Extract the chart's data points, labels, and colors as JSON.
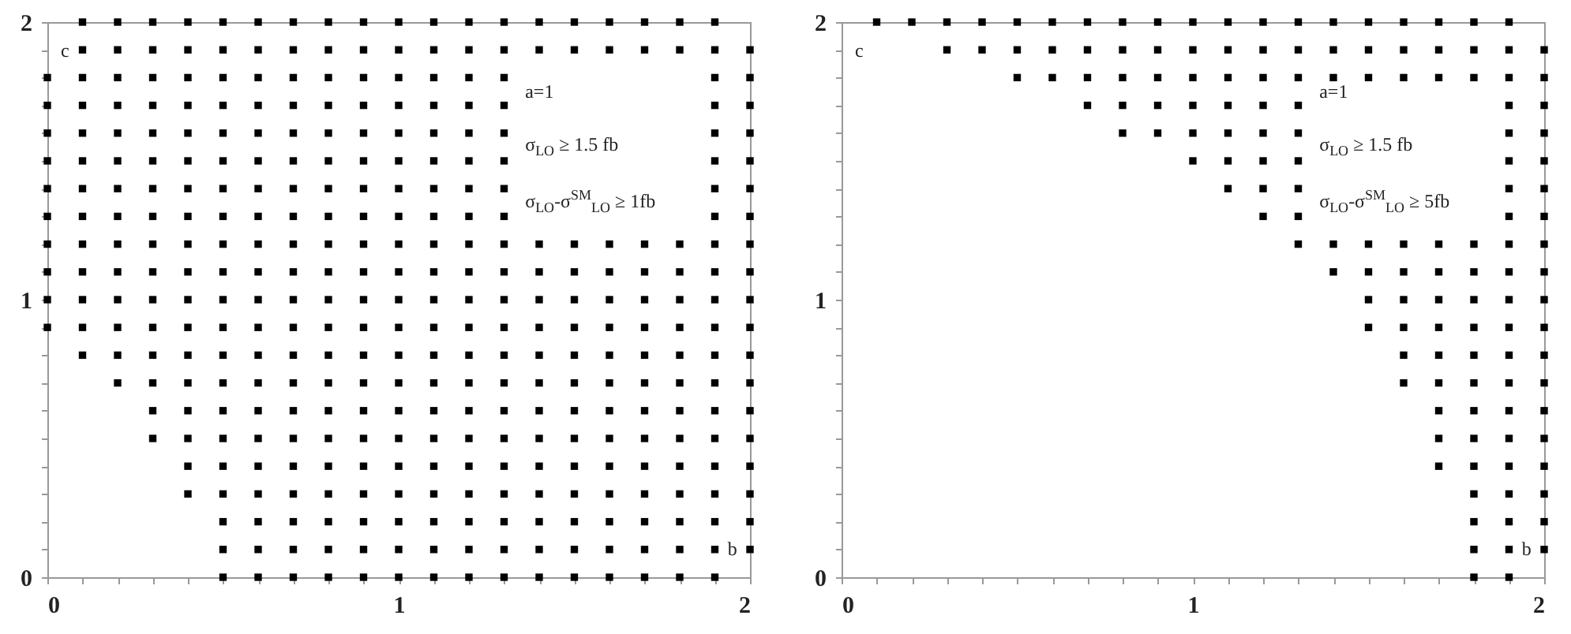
{
  "chart_data": [
    {
      "type": "scatter",
      "marker": "square",
      "grid": false,
      "xlim": [
        0,
        2
      ],
      "ylim": [
        0,
        2
      ],
      "xticks": [
        0,
        {
          "value": 0.1,
          "label": null
        },
        {
          "value": 0.2,
          "label": null
        },
        {
          "value": 0.3,
          "label": null
        },
        {
          "value": 0.4,
          "label": null
        },
        {
          "value": 0.5,
          "label": null
        },
        {
          "value": 0.6,
          "label": null
        },
        {
          "value": 0.7,
          "label": null
        },
        {
          "value": 0.8,
          "label": null
        },
        {
          "value": 0.9,
          "label": null
        },
        1,
        {
          "value": 1.1,
          "label": null
        },
        {
          "value": 1.2,
          "label": null
        },
        {
          "value": 1.3,
          "label": null
        },
        {
          "value": 1.4,
          "label": null
        },
        {
          "value": 1.5,
          "label": null
        },
        {
          "value": 1.6,
          "label": null
        },
        {
          "value": 1.7,
          "label": null
        },
        {
          "value": 1.8,
          "label": null
        },
        {
          "value": 1.9,
          "label": null
        },
        2
      ],
      "yticks": [
        0,
        {
          "value": 0.1,
          "label": null
        },
        {
          "value": 0.2,
          "label": null
        },
        {
          "value": 0.3,
          "label": null
        },
        {
          "value": 0.4,
          "label": null
        },
        {
          "value": 0.5,
          "label": null
        },
        {
          "value": 0.6,
          "label": null
        },
        {
          "value": 0.7,
          "label": null
        },
        {
          "value": 0.8,
          "label": null
        },
        {
          "value": 0.9,
          "label": null
        },
        1,
        {
          "value": 1.1,
          "label": null
        },
        {
          "value": 1.2,
          "label": null
        },
        {
          "value": 1.3,
          "label": null
        },
        {
          "value": 1.4,
          "label": null
        },
        {
          "value": 1.5,
          "label": null
        },
        {
          "value": 1.6,
          "label": null
        },
        {
          "value": 1.7,
          "label": null
        },
        {
          "value": 1.8,
          "label": null
        },
        {
          "value": 1.9,
          "label": null
        },
        2
      ],
      "annotations": [
        "a=1",
        "σ$_{LO}$ ≥ 1.5 fb",
        "σ$_{LO}$-σ$^{SM}$$_{LO}$ ≥ 1fb",
        "c",
        "b"
      ],
      "series": [
        {
          "color": "#000000",
          "x": [
            0.1,
            0.2,
            0.3,
            0.4,
            0.5,
            0.6,
            0.7,
            0.8,
            0.9,
            1,
            1.1,
            1.2,
            1.3,
            1.4,
            1.5,
            1.6,
            1.7,
            1.8,
            1.9
          ],
          "values": [
            2,
            2,
            2,
            2,
            2,
            2,
            2,
            2,
            2,
            2,
            2,
            2,
            2,
            2,
            2,
            2,
            2,
            2,
            2
          ]
        },
        {
          "color": "#000000",
          "x": [
            0.1,
            0.2,
            0.3,
            0.4,
            0.5,
            0.6,
            0.7,
            0.8,
            0.9,
            1,
            1.1,
            1.2,
            1.3,
            1.4,
            1.5,
            1.6,
            1.7,
            1.8,
            1.9,
            2
          ],
          "values": [
            1.9,
            1.9,
            1.9,
            1.9,
            1.9,
            1.9,
            1.9,
            1.9,
            1.9,
            1.9,
            1.9,
            1.9,
            1.9,
            1.9,
            1.9,
            1.9,
            1.9,
            1.9,
            1.9,
            1.9
          ]
        },
        {
          "color": "#000000",
          "x": [
            0,
            0.1,
            0.2,
            0.3,
            0.4,
            0.5,
            0.6,
            0.7,
            0.8,
            0.9,
            1,
            1.1,
            1.2,
            1.3,
            1.9,
            2
          ],
          "values": [
            1.8,
            1.8,
            1.8,
            1.8,
            1.8,
            1.8,
            1.8,
            1.8,
            1.8,
            1.8,
            1.8,
            1.8,
            1.8,
            1.8,
            1.8,
            1.8
          ]
        },
        {
          "color": "#000000",
          "x": [
            0,
            0.1,
            0.2,
            0.3,
            0.4,
            0.5,
            0.6,
            0.7,
            0.8,
            0.9,
            1,
            1.1,
            1.2,
            1.3,
            1.9,
            2
          ],
          "values": [
            1.7,
            1.7,
            1.7,
            1.7,
            1.7,
            1.7,
            1.7,
            1.7,
            1.7,
            1.7,
            1.7,
            1.7,
            1.7,
            1.7,
            1.7,
            1.7
          ]
        },
        {
          "color": "#000000",
          "x": [
            0,
            0.1,
            0.2,
            0.3,
            0.4,
            0.5,
            0.6,
            0.7,
            0.8,
            0.9,
            1,
            1.1,
            1.2,
            1.3,
            1.9,
            2
          ],
          "values": [
            1.6,
            1.6,
            1.6,
            1.6,
            1.6,
            1.6,
            1.6,
            1.6,
            1.6,
            1.6,
            1.6,
            1.6,
            1.6,
            1.6,
            1.6,
            1.6
          ]
        },
        {
          "color": "#000000",
          "x": [
            0,
            0.1,
            0.2,
            0.3,
            0.4,
            0.5,
            0.6,
            0.7,
            0.8,
            0.9,
            1,
            1.1,
            1.2,
            1.3,
            1.9,
            2
          ],
          "values": [
            1.5,
            1.5,
            1.5,
            1.5,
            1.5,
            1.5,
            1.5,
            1.5,
            1.5,
            1.5,
            1.5,
            1.5,
            1.5,
            1.5,
            1.5,
            1.5
          ]
        },
        {
          "color": "#000000",
          "x": [
            0,
            0.1,
            0.2,
            0.3,
            0.4,
            0.5,
            0.6,
            0.7,
            0.8,
            0.9,
            1,
            1.1,
            1.2,
            1.3,
            1.9,
            2
          ],
          "values": [
            1.4,
            1.4,
            1.4,
            1.4,
            1.4,
            1.4,
            1.4,
            1.4,
            1.4,
            1.4,
            1.4,
            1.4,
            1.4,
            1.4,
            1.4,
            1.4
          ]
        },
        {
          "color": "#000000",
          "x": [
            0,
            0.1,
            0.2,
            0.3,
            0.4,
            0.5,
            0.6,
            0.7,
            0.8,
            0.9,
            1,
            1.1,
            1.2,
            1.3,
            1.9,
            2
          ],
          "values": [
            1.3,
            1.3,
            1.3,
            1.3,
            1.3,
            1.3,
            1.3,
            1.3,
            1.3,
            1.3,
            1.3,
            1.3,
            1.3,
            1.3,
            1.3,
            1.3
          ]
        },
        {
          "color": "#000000",
          "x": [
            0,
            0.1,
            0.2,
            0.3,
            0.4,
            0.5,
            0.6,
            0.7,
            0.8,
            0.9,
            1,
            1.1,
            1.2,
            1.3,
            1.4,
            1.5,
            1.6,
            1.7,
            1.8,
            1.9,
            2
          ],
          "values": [
            1.2,
            1.2,
            1.2,
            1.2,
            1.2,
            1.2,
            1.2,
            1.2,
            1.2,
            1.2,
            1.2,
            1.2,
            1.2,
            1.2,
            1.2,
            1.2,
            1.2,
            1.2,
            1.2,
            1.2,
            1.2
          ]
        },
        {
          "color": "#000000",
          "x": [
            0,
            0.1,
            0.2,
            0.3,
            0.4,
            0.5,
            0.6,
            0.7,
            0.8,
            0.9,
            1,
            1.1,
            1.2,
            1.3,
            1.4,
            1.5,
            1.6,
            1.7,
            1.8,
            1.9,
            2
          ],
          "values": [
            1.1,
            1.1,
            1.1,
            1.1,
            1.1,
            1.1,
            1.1,
            1.1,
            1.1,
            1.1,
            1.1,
            1.1,
            1.1,
            1.1,
            1.1,
            1.1,
            1.1,
            1.1,
            1.1,
            1.1,
            1.1
          ]
        },
        {
          "color": "#000000",
          "x": [
            0,
            0.1,
            0.2,
            0.3,
            0.4,
            0.5,
            0.6,
            0.7,
            0.8,
            0.9,
            1,
            1.1,
            1.2,
            1.3,
            1.4,
            1.5,
            1.6,
            1.7,
            1.8,
            1.9,
            2
          ],
          "values": [
            1,
            1,
            1,
            1,
            1,
            1,
            1,
            1,
            1,
            1,
            1,
            1,
            1,
            1,
            1,
            1,
            1,
            1,
            1,
            1,
            1
          ]
        },
        {
          "color": "#000000",
          "x": [
            0,
            0.1,
            0.2,
            0.3,
            0.4,
            0.5,
            0.6,
            0.7,
            0.8,
            0.9,
            1,
            1.1,
            1.2,
            1.3,
            1.4,
            1.5,
            1.6,
            1.7,
            1.8,
            1.9,
            2
          ],
          "values": [
            0.9,
            0.9,
            0.9,
            0.9,
            0.9,
            0.9,
            0.9,
            0.9,
            0.9,
            0.9,
            0.9,
            0.9,
            0.9,
            0.9,
            0.9,
            0.9,
            0.9,
            0.9,
            0.9,
            0.9,
            0.9
          ]
        },
        {
          "color": "#000000",
          "x": [
            0.1,
            0.2,
            0.3,
            0.4,
            0.5,
            0.6,
            0.7,
            0.8,
            0.9,
            1,
            1.1,
            1.2,
            1.3,
            1.4,
            1.5,
            1.6,
            1.7,
            1.8,
            1.9,
            2
          ],
          "values": [
            0.8,
            0.8,
            0.8,
            0.8,
            0.8,
            0.8,
            0.8,
            0.8,
            0.8,
            0.8,
            0.8,
            0.8,
            0.8,
            0.8,
            0.8,
            0.8,
            0.8,
            0.8,
            0.8,
            0.8
          ]
        },
        {
          "color": "#000000",
          "x": [
            0.2,
            0.3,
            0.4,
            0.5,
            0.6,
            0.7,
            0.8,
            0.9,
            1,
            1.1,
            1.2,
            1.3,
            1.4,
            1.5,
            1.6,
            1.7,
            1.8,
            1.9,
            2
          ],
          "values": [
            0.7,
            0.7,
            0.7,
            0.7,
            0.7,
            0.7,
            0.7,
            0.7,
            0.7,
            0.7,
            0.7,
            0.7,
            0.7,
            0.7,
            0.7,
            0.7,
            0.7,
            0.7,
            0.7
          ]
        },
        {
          "color": "#000000",
          "x": [
            0.3,
            0.4,
            0.5,
            0.6,
            0.7,
            0.8,
            0.9,
            1,
            1.1,
            1.2,
            1.3,
            1.4,
            1.5,
            1.6,
            1.7,
            1.8,
            1.9,
            2
          ],
          "values": [
            0.6,
            0.6,
            0.6,
            0.6,
            0.6,
            0.6,
            0.6,
            0.6,
            0.6,
            0.6,
            0.6,
            0.6,
            0.6,
            0.6,
            0.6,
            0.6,
            0.6,
            0.6
          ]
        },
        {
          "color": "#000000",
          "x": [
            0.3,
            0.4,
            0.5,
            0.6,
            0.7,
            0.8,
            0.9,
            1,
            1.1,
            1.2,
            1.3,
            1.4,
            1.5,
            1.6,
            1.7,
            1.8,
            1.9,
            2
          ],
          "values": [
            0.5,
            0.5,
            0.5,
            0.5,
            0.5,
            0.5,
            0.5,
            0.5,
            0.5,
            0.5,
            0.5,
            0.5,
            0.5,
            0.5,
            0.5,
            0.5,
            0.5,
            0.5
          ]
        },
        {
          "color": "#000000",
          "x": [
            0.4,
            0.5,
            0.6,
            0.7,
            0.8,
            0.9,
            1,
            1.1,
            1.2,
            1.3,
            1.4,
            1.5,
            1.6,
            1.7,
            1.8,
            1.9,
            2
          ],
          "values": [
            0.4,
            0.4,
            0.4,
            0.4,
            0.4,
            0.4,
            0.4,
            0.4,
            0.4,
            0.4,
            0.4,
            0.4,
            0.4,
            0.4,
            0.4,
            0.4,
            0.4
          ]
        },
        {
          "color": "#000000",
          "x": [
            0.4,
            0.5,
            0.6,
            0.7,
            0.8,
            0.9,
            1,
            1.1,
            1.2,
            1.3,
            1.4,
            1.5,
            1.6,
            1.7,
            1.8,
            1.9,
            2
          ],
          "values": [
            0.3,
            0.3,
            0.3,
            0.3,
            0.3,
            0.3,
            0.3,
            0.3,
            0.3,
            0.3,
            0.3,
            0.3,
            0.3,
            0.3,
            0.3,
            0.3,
            0.3
          ]
        },
        {
          "color": "#000000",
          "x": [
            0.5,
            0.6,
            0.7,
            0.8,
            0.9,
            1,
            1.1,
            1.2,
            1.3,
            1.4,
            1.5,
            1.6,
            1.7,
            1.8,
            1.9,
            2
          ],
          "values": [
            0.2,
            0.2,
            0.2,
            0.2,
            0.2,
            0.2,
            0.2,
            0.2,
            0.2,
            0.2,
            0.2,
            0.2,
            0.2,
            0.2,
            0.2,
            0.2
          ]
        },
        {
          "color": "#000000",
          "x": [
            0.5,
            0.6,
            0.7,
            0.8,
            0.9,
            1,
            1.1,
            1.2,
            1.3,
            1.4,
            1.5,
            1.6,
            1.7,
            1.8,
            1.9,
            2
          ],
          "values": [
            0.1,
            0.1,
            0.1,
            0.1,
            0.1,
            0.1,
            0.1,
            0.1,
            0.1,
            0.1,
            0.1,
            0.1,
            0.1,
            0.1,
            0.1,
            0.1
          ]
        },
        {
          "color": "#000000",
          "x": [
            0.5,
            0.6,
            0.7,
            0.8,
            0.9,
            1,
            1.1,
            1.2,
            1.3,
            1.4,
            1.5,
            1.6,
            1.7,
            1.8,
            1.9
          ],
          "values": [
            0,
            0,
            0,
            0,
            0,
            0,
            0,
            0,
            0,
            0,
            0,
            0,
            0,
            0,
            0
          ]
        }
      ]
    },
    {
      "type": "scatter",
      "marker": "square",
      "grid": false,
      "xlim": [
        0,
        2
      ],
      "ylim": [
        0,
        2
      ],
      "xticks": [
        0,
        {
          "value": 0.1,
          "label": null
        },
        {
          "value": 0.2,
          "label": null
        },
        {
          "value": 0.3,
          "label": null
        },
        {
          "value": 0.4,
          "label": null
        },
        {
          "value": 0.5,
          "label": null
        },
        {
          "value": 0.6,
          "label": null
        },
        {
          "value": 0.7,
          "label": null
        },
        {
          "value": 0.8,
          "label": null
        },
        {
          "value": 0.9,
          "label": null
        },
        1,
        {
          "value": 1.1,
          "label": null
        },
        {
          "value": 1.2,
          "label": null
        },
        {
          "value": 1.3,
          "label": null
        },
        {
          "value": 1.4,
          "label": null
        },
        {
          "value": 1.5,
          "label": null
        },
        {
          "value": 1.6,
          "label": null
        },
        {
          "value": 1.7,
          "label": null
        },
        {
          "value": 1.8,
          "label": null
        },
        {
          "value": 1.9,
          "label": null
        },
        2
      ],
      "yticks": [
        0,
        {
          "value": 0.1,
          "label": null
        },
        {
          "value": 0.2,
          "label": null
        },
        {
          "value": 0.3,
          "label": null
        },
        {
          "value": 0.4,
          "label": null
        },
        {
          "value": 0.5,
          "label": null
        },
        {
          "value": 0.6,
          "label": null
        },
        {
          "value": 0.7,
          "label": null
        },
        {
          "value": 0.8,
          "label": null
        },
        {
          "value": 0.9,
          "label": null
        },
        1,
        {
          "value": 1.1,
          "label": null
        },
        {
          "value": 1.2,
          "label": null
        },
        {
          "value": 1.3,
          "label": null
        },
        {
          "value": 1.4,
          "label": null
        },
        {
          "value": 1.5,
          "label": null
        },
        {
          "value": 1.6,
          "label": null
        },
        {
          "value": 1.7,
          "label": null
        },
        {
          "value": 1.8,
          "label": null
        },
        {
          "value": 1.9,
          "label": null
        },
        2
      ],
      "annotations": [
        "a=1",
        "σ$_{LO}$ ≥ 1.5 fb",
        "σ$_{LO}$-σ$^{SM}$$_{LO}$ ≥ 5fb",
        "c",
        "b"
      ],
      "series": [
        {
          "color": "#000000",
          "x": [
            0.1,
            0.2,
            0.3,
            0.4,
            0.5,
            0.6,
            0.7,
            0.8,
            0.9,
            1,
            1.1,
            1.2,
            1.3,
            1.4,
            1.5,
            1.6,
            1.7,
            1.8,
            1.9
          ],
          "values": [
            2,
            2,
            2,
            2,
            2,
            2,
            2,
            2,
            2,
            2,
            2,
            2,
            2,
            2,
            2,
            2,
            2,
            2,
            2
          ]
        },
        {
          "color": "#000000",
          "x": [
            0.3,
            0.4,
            0.5,
            0.6,
            0.7,
            0.8,
            0.9,
            1,
            1.1,
            1.2,
            1.3,
            1.4,
            1.5,
            1.6,
            1.7,
            1.8,
            1.9,
            2
          ],
          "values": [
            1.9,
            1.9,
            1.9,
            1.9,
            1.9,
            1.9,
            1.9,
            1.9,
            1.9,
            1.9,
            1.9,
            1.9,
            1.9,
            1.9,
            1.9,
            1.9,
            1.9,
            1.9
          ]
        },
        {
          "color": "#000000",
          "x": [
            0.5,
            0.6,
            0.7,
            0.8,
            0.9,
            1,
            1.1,
            1.2,
            1.3,
            1.4,
            1.5,
            1.6,
            1.7,
            1.8,
            1.9,
            2
          ],
          "values": [
            1.8,
            1.8,
            1.8,
            1.8,
            1.8,
            1.8,
            1.8,
            1.8,
            1.8,
            1.8,
            1.8,
            1.8,
            1.8,
            1.8,
            1.8,
            1.8
          ]
        },
        {
          "color": "#000000",
          "x": [
            0.7,
            0.8,
            0.9,
            1,
            1.1,
            1.2,
            1.3,
            1.9,
            2
          ],
          "values": [
            1.7,
            1.7,
            1.7,
            1.7,
            1.7,
            1.7,
            1.7,
            1.7,
            1.7
          ]
        },
        {
          "color": "#000000",
          "x": [
            0.8,
            0.9,
            1,
            1.1,
            1.2,
            1.3,
            1.9,
            2
          ],
          "values": [
            1.6,
            1.6,
            1.6,
            1.6,
            1.6,
            1.6,
            1.6,
            1.6
          ]
        },
        {
          "color": "#000000",
          "x": [
            1,
            1.1,
            1.2,
            1.3,
            1.9,
            2
          ],
          "values": [
            1.5,
            1.5,
            1.5,
            1.5,
            1.5,
            1.5
          ]
        },
        {
          "color": "#000000",
          "x": [
            1.1,
            1.2,
            1.3,
            1.9,
            2
          ],
          "values": [
            1.4,
            1.4,
            1.4,
            1.4,
            1.4
          ]
        },
        {
          "color": "#000000",
          "x": [
            1.2,
            1.3,
            1.9,
            2
          ],
          "values": [
            1.3,
            1.3,
            1.3,
            1.3
          ]
        },
        {
          "color": "#000000",
          "x": [
            1.3,
            1.4,
            1.5,
            1.6,
            1.7,
            1.8,
            1.9,
            2
          ],
          "values": [
            1.2,
            1.2,
            1.2,
            1.2,
            1.2,
            1.2,
            1.2,
            1.2
          ]
        },
        {
          "color": "#000000",
          "x": [
            1.4,
            1.5,
            1.6,
            1.7,
            1.8,
            1.9,
            2
          ],
          "values": [
            1.1,
            1.1,
            1.1,
            1.1,
            1.1,
            1.1,
            1.1
          ]
        },
        {
          "color": "#000000",
          "x": [
            1.5,
            1.6,
            1.7,
            1.8,
            1.9,
            2
          ],
          "values": [
            1,
            1,
            1,
            1,
            1,
            1
          ]
        },
        {
          "color": "#000000",
          "x": [
            1.5,
            1.6,
            1.7,
            1.8,
            1.9,
            2
          ],
          "values": [
            0.9,
            0.9,
            0.9,
            0.9,
            0.9,
            0.9
          ]
        },
        {
          "color": "#000000",
          "x": [
            1.6,
            1.7,
            1.8,
            1.9,
            2
          ],
          "values": [
            0.8,
            0.8,
            0.8,
            0.8,
            0.8
          ]
        },
        {
          "color": "#000000",
          "x": [
            1.6,
            1.7,
            1.8,
            1.9,
            2
          ],
          "values": [
            0.7,
            0.7,
            0.7,
            0.7,
            0.7
          ]
        },
        {
          "color": "#000000",
          "x": [
            1.7,
            1.8,
            1.9,
            2
          ],
          "values": [
            0.6,
            0.6,
            0.6,
            0.6
          ]
        },
        {
          "color": "#000000",
          "x": [
            1.7,
            1.8,
            1.9,
            2
          ],
          "values": [
            0.5,
            0.5,
            0.5,
            0.5
          ]
        },
        {
          "color": "#000000",
          "x": [
            1.7,
            1.8,
            1.9,
            2
          ],
          "values": [
            0.4,
            0.4,
            0.4,
            0.4
          ]
        },
        {
          "color": "#000000",
          "x": [
            1.8,
            1.9,
            2
          ],
          "values": [
            0.3,
            0.3,
            0.3
          ]
        },
        {
          "color": "#000000",
          "x": [
            1.8,
            1.9,
            2
          ],
          "values": [
            0.2,
            0.2,
            0.2
          ]
        },
        {
          "color": "#000000",
          "x": [
            1.8,
            1.9,
            2
          ],
          "values": [
            0.1,
            0.1,
            0.1
          ]
        },
        {
          "color": "#000000",
          "x": [
            1.8,
            1.9
          ],
          "values": [
            0,
            0
          ]
        }
      ]
    }
  ]
}
